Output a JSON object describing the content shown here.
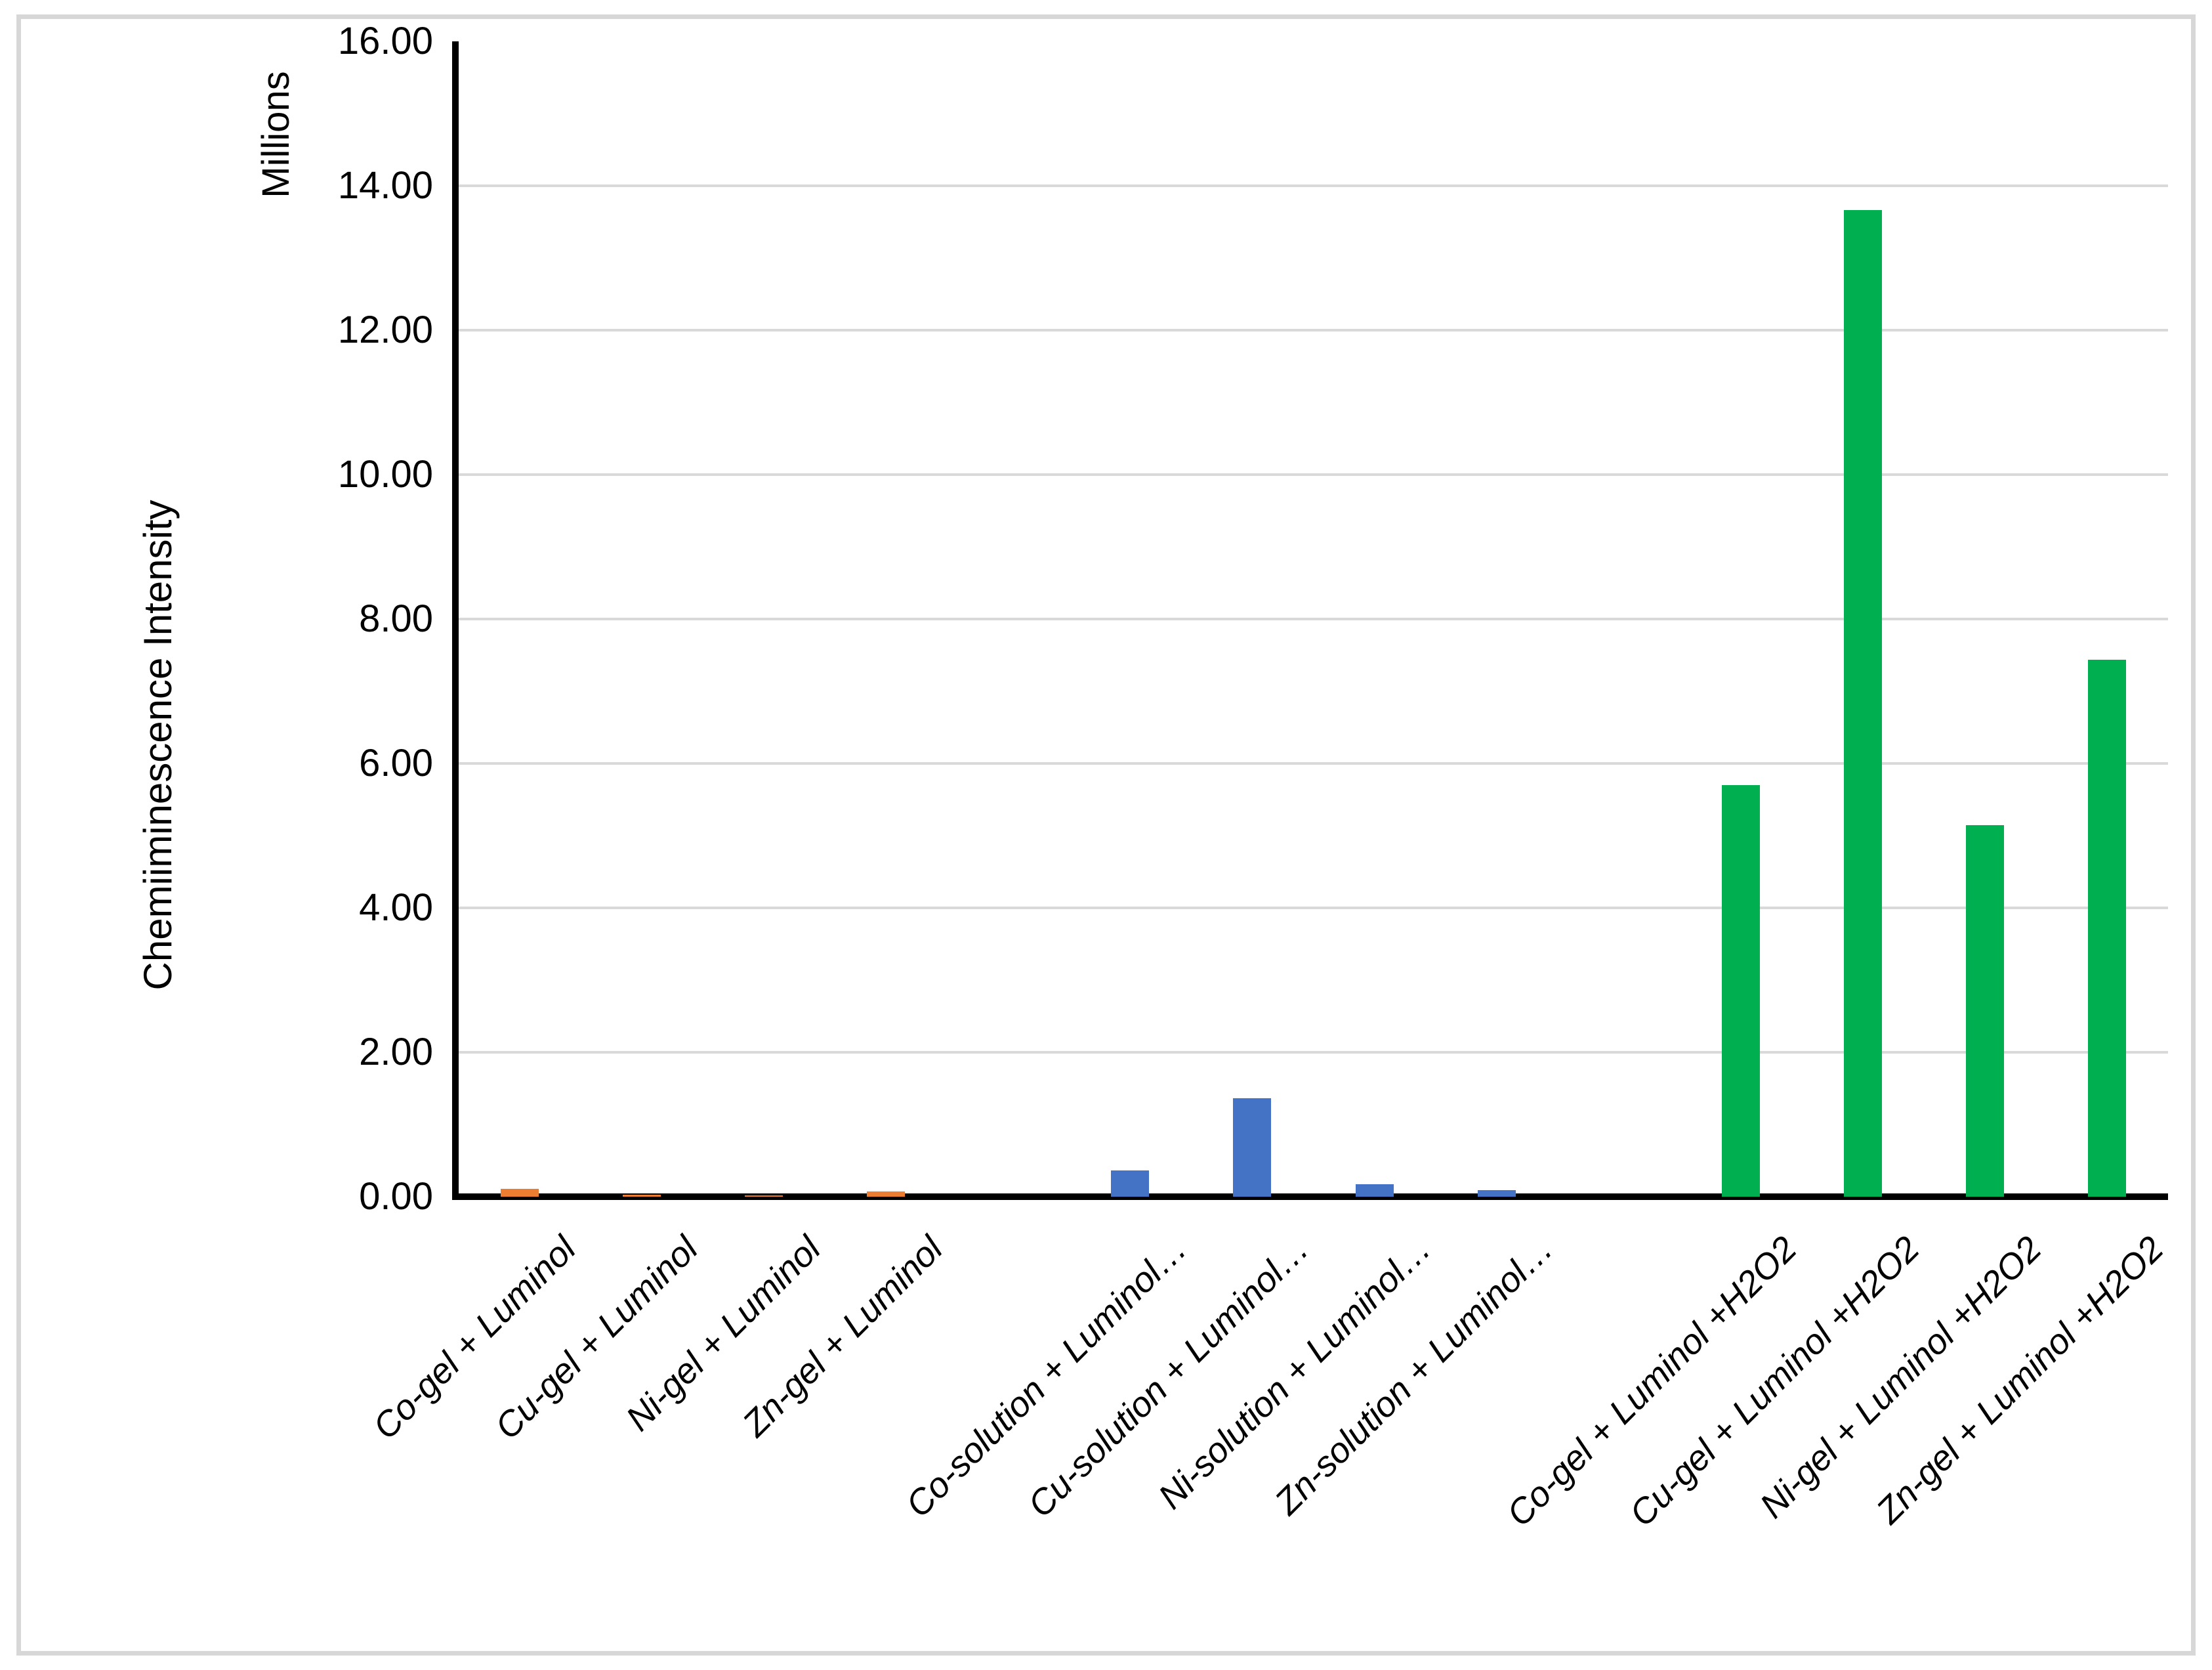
{
  "chart_data": {
    "type": "bar",
    "title": "",
    "ylabel": "Chemiiminescence Intensity",
    "units_label": "Millions",
    "xlabel": "",
    "ylim": [
      0,
      16
    ],
    "ytick_step": 2,
    "ytick_labels": [
      "0.00",
      "2.00",
      "4.00",
      "6.00",
      "8.00",
      "10.00",
      "12.00",
      "14.00",
      "16.00"
    ],
    "grid": "horizontal-light",
    "legend_position": "none",
    "total_slots": 14,
    "groups": [
      {
        "color": "#ED7D31",
        "items": [
          {
            "label": "Co-gel + Luminol",
            "value": 0.11,
            "slot": 0
          },
          {
            "label": "Cu-gel + Luminol",
            "value": 0.03,
            "slot": 1
          },
          {
            "label": "Ni-gel + Luminol",
            "value": 0.01,
            "slot": 2
          },
          {
            "label": "Zn-gel + Luminol",
            "value": 0.07,
            "slot": 3
          }
        ]
      },
      {
        "color": "#4472C4",
        "items": [
          {
            "label": "Co-solution + Luminol…",
            "value": 0.36,
            "slot": 5
          },
          {
            "label": "Cu-solution + Luminol…",
            "value": 1.36,
            "slot": 6
          },
          {
            "label": "Ni-solution + Luminol…",
            "value": 0.17,
            "slot": 7
          },
          {
            "label": "Zn-solution + Luminol…",
            "value": 0.09,
            "slot": 8
          }
        ]
      },
      {
        "color": "#00B050",
        "items": [
          {
            "label": "Co-gel + Luminol +H2O2",
            "value": 5.7,
            "slot": 10
          },
          {
            "label": "Cu-gel + Luminol +H2O2",
            "value": 13.66,
            "slot": 11
          },
          {
            "label": "Ni-gel + Luminol +H2O2",
            "value": 5.15,
            "slot": 12
          },
          {
            "label": "Zn-gel + Luminol +H2O2",
            "value": 7.44,
            "slot": 13
          }
        ]
      }
    ]
  },
  "colors": {
    "axis": "#000000",
    "gridline": "#D9D9D9",
    "outer_border": "#D7D7D7",
    "background": "#FFFFFF"
  }
}
